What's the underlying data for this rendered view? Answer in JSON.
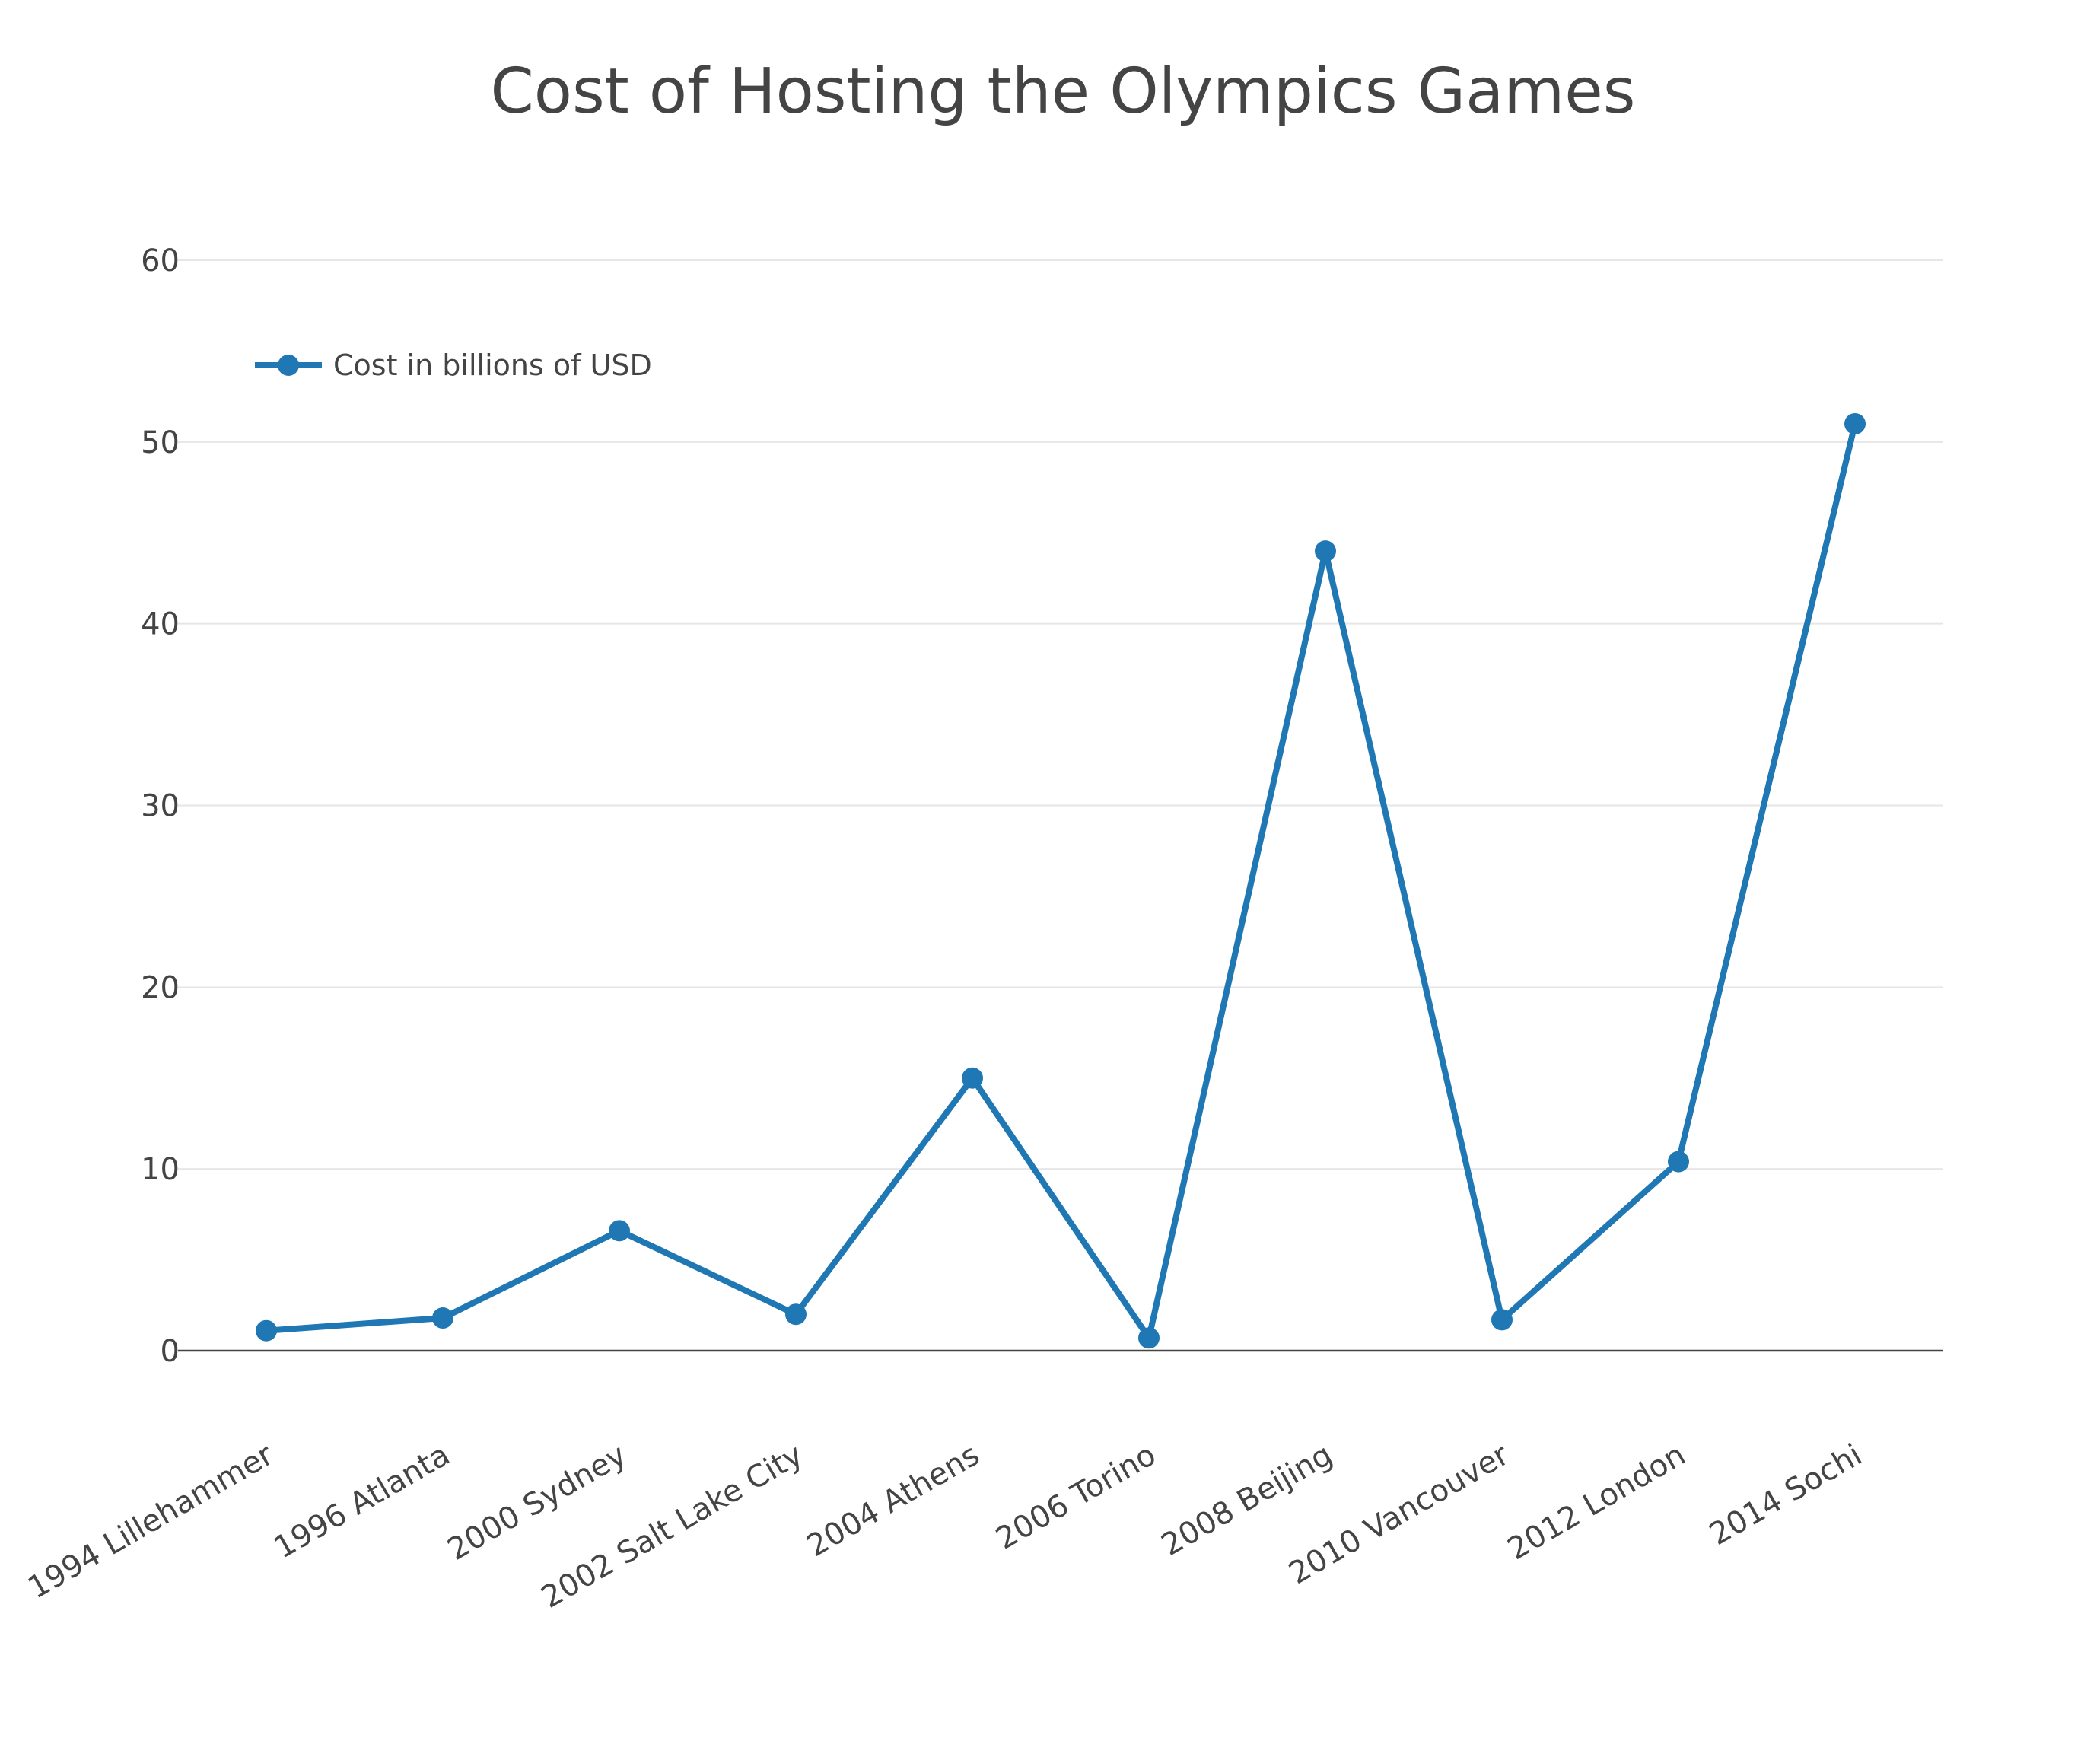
{
  "chart_data": {
    "type": "line",
    "title": "Cost of Hosting the Olympics Games",
    "xlabel": "",
    "ylabel": "",
    "categories": [
      "1994 Lillehammer",
      "1996 Atlanta",
      "2000 Sydney",
      "2002 Salt Lake City",
      "2004 Athens",
      "2006 Torino",
      "2008 Beijing",
      "2010 Vancouver",
      "2012 London",
      "2014 Sochi"
    ],
    "series": [
      {
        "name": "Cost in billions of USD",
        "values": [
          1.1,
          1.8,
          6.6,
          2.0,
          15.0,
          0.7,
          44.0,
          1.7,
          10.4,
          51.0
        ],
        "color": "#1f77b4"
      }
    ],
    "ylim": [
      0,
      60
    ],
    "yticks": [
      0,
      10,
      20,
      30,
      40,
      50,
      60
    ],
    "grid": true,
    "legend_position": "top-left"
  }
}
